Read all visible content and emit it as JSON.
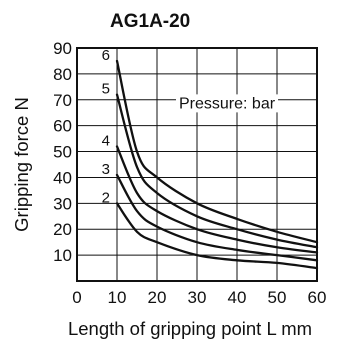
{
  "chart_data": {
    "type": "line",
    "title": "AG1A-20",
    "xlabel": "Length of gripping point L mm",
    "ylabel": "Gripping force N",
    "annotation": "Pressure: bar",
    "xlim": [
      0,
      60
    ],
    "ylim": [
      0,
      90
    ],
    "xticks": [
      0,
      10,
      20,
      30,
      40,
      50,
      60
    ],
    "yticks": [
      10,
      20,
      30,
      40,
      50,
      60,
      70,
      80,
      90
    ],
    "grid": true,
    "x": [
      10,
      15,
      20,
      30,
      40,
      50,
      60
    ],
    "series": [
      {
        "name": "6",
        "values": [
          85,
          50,
          40,
          30,
          24,
          19,
          15
        ]
      },
      {
        "name": "5",
        "values": [
          72,
          44,
          34,
          25,
          20,
          16,
          13
        ]
      },
      {
        "name": "4",
        "values": [
          52,
          34,
          27,
          20,
          16,
          13,
          11
        ]
      },
      {
        "name": "3",
        "values": [
          41,
          27,
          21,
          15,
          12,
          10,
          8
        ]
      },
      {
        "name": "2",
        "values": [
          30,
          19,
          15,
          10,
          8,
          7,
          5
        ]
      }
    ],
    "colors": {
      "line": "#111111",
      "grid": "#111111"
    }
  }
}
